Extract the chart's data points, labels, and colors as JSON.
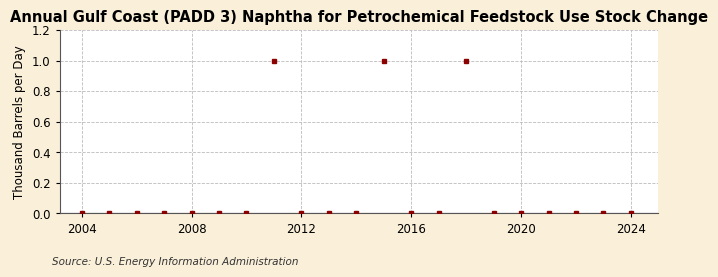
{
  "title": "Annual Gulf Coast (PADD 3) Naphtha for Petrochemical Feedstock Use Stock Change",
  "ylabel": "Thousand Barrels per Day",
  "source": "Source: U.S. Energy Information Administration",
  "background_color": "#faefd9",
  "plot_background_color": "#ffffff",
  "years": [
    2004,
    2005,
    2006,
    2007,
    2008,
    2009,
    2010,
    2011,
    2012,
    2013,
    2014,
    2015,
    2016,
    2017,
    2018,
    2019,
    2020,
    2021,
    2022,
    2023,
    2024
  ],
  "values": [
    0.0,
    0.0,
    0.0,
    0.0,
    0.0,
    0.0,
    0.0,
    1.0,
    0.0,
    0.0,
    0.0,
    1.0,
    0.0,
    0.0,
    1.0,
    0.0,
    0.0,
    0.0,
    0.0,
    0.0,
    0.0
  ],
  "marker_color": "#8b0000",
  "baseline_color": "#1a1a1a",
  "grid_color": "#bbbbbb",
  "xlim": [
    2003.2,
    2025.0
  ],
  "ylim": [
    0.0,
    1.2
  ],
  "yticks": [
    0.0,
    0.2,
    0.4,
    0.6,
    0.8,
    1.0,
    1.2
  ],
  "xticks": [
    2004,
    2008,
    2012,
    2016,
    2020,
    2024
  ],
  "title_fontsize": 10.5,
  "label_fontsize": 8.5,
  "tick_fontsize": 8.5,
  "source_fontsize": 7.5
}
